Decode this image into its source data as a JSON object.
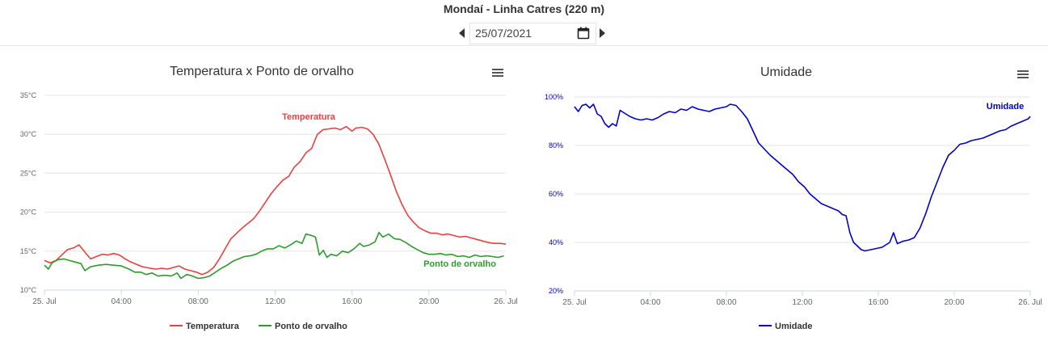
{
  "page": {
    "station_title": "Mondaí - Linha Catres (220 m)",
    "date_value": "25/07/2021",
    "icons": {
      "prev": "caret-left-icon",
      "next": "caret-right-icon",
      "calendar": "calendar-icon",
      "menu": "hamburger-menu-icon"
    }
  },
  "chart_data": [
    {
      "type": "line",
      "title": "Temperatura x Ponto de orvalho",
      "x_tick_labels": [
        "25. Jul",
        "04:00",
        "08:00",
        "12:00",
        "16:00",
        "20:00",
        "26. Jul"
      ],
      "x_ticks_hours": [
        0,
        4,
        8,
        12,
        16,
        20,
        24
      ],
      "xlim_hours": [
        0,
        24
      ],
      "y_tick_labels": [
        "10°C",
        "15°C",
        "20°C",
        "25°C",
        "30°C",
        "35°C"
      ],
      "y_ticks": [
        10,
        15,
        20,
        25,
        30,
        35
      ],
      "ylim": [
        10,
        35
      ],
      "grid": true,
      "legend_position": "bottom",
      "series": [
        {
          "name": "Temperatura",
          "color": "#e8403e",
          "points": [
            [
              0,
              13.8
            ],
            [
              0.3,
              13.5
            ],
            [
              0.6,
              13.8
            ],
            [
              0.9,
              14.5
            ],
            [
              1.2,
              15.2
            ],
            [
              1.5,
              15.4
            ],
            [
              1.8,
              15.8
            ],
            [
              2.0,
              15.2
            ],
            [
              2.2,
              14.6
            ],
            [
              2.4,
              14.0
            ],
            [
              2.7,
              14.3
            ],
            [
              3.0,
              14.6
            ],
            [
              3.3,
              14.5
            ],
            [
              3.6,
              14.7
            ],
            [
              3.9,
              14.5
            ],
            [
              4.2,
              14.0
            ],
            [
              4.5,
              13.6
            ],
            [
              4.8,
              13.3
            ],
            [
              5.1,
              13.0
            ],
            [
              5.5,
              12.8
            ],
            [
              5.8,
              12.7
            ],
            [
              6.1,
              12.8
            ],
            [
              6.4,
              12.7
            ],
            [
              6.7,
              12.9
            ],
            [
              7.0,
              13.1
            ],
            [
              7.3,
              12.7
            ],
            [
              7.6,
              12.5
            ],
            [
              7.9,
              12.3
            ],
            [
              8.2,
              12.0
            ],
            [
              8.5,
              12.3
            ],
            [
              8.8,
              12.9
            ],
            [
              9.1,
              14.0
            ],
            [
              9.4,
              15.3
            ],
            [
              9.7,
              16.6
            ],
            [
              10.0,
              17.3
            ],
            [
              10.3,
              18.0
            ],
            [
              10.6,
              18.6
            ],
            [
              10.9,
              19.2
            ],
            [
              11.2,
              20.2
            ],
            [
              11.5,
              21.3
            ],
            [
              11.8,
              22.4
            ],
            [
              12.1,
              23.3
            ],
            [
              12.4,
              24.1
            ],
            [
              12.7,
              24.6
            ],
            [
              13.0,
              25.8
            ],
            [
              13.3,
              26.5
            ],
            [
              13.6,
              27.6
            ],
            [
              13.9,
              28.2
            ],
            [
              14.2,
              30.0
            ],
            [
              14.5,
              30.6
            ],
            [
              14.8,
              30.7
            ],
            [
              15.1,
              30.8
            ],
            [
              15.4,
              30.6
            ],
            [
              15.7,
              31.0
            ],
            [
              16.0,
              30.4
            ],
            [
              16.2,
              30.8
            ],
            [
              16.5,
              30.9
            ],
            [
              16.8,
              30.7
            ],
            [
              17.1,
              30.0
            ],
            [
              17.4,
              28.7
            ],
            [
              17.7,
              26.8
            ],
            [
              18.0,
              24.8
            ],
            [
              18.3,
              22.7
            ],
            [
              18.6,
              21.0
            ],
            [
              18.9,
              19.6
            ],
            [
              19.2,
              18.7
            ],
            [
              19.5,
              18.0
            ],
            [
              19.8,
              17.6
            ],
            [
              20.1,
              17.3
            ],
            [
              20.4,
              17.3
            ],
            [
              20.7,
              17.1
            ],
            [
              21.0,
              17.2
            ],
            [
              21.3,
              17.0
            ],
            [
              21.6,
              16.8
            ],
            [
              21.9,
              16.9
            ],
            [
              22.2,
              16.7
            ],
            [
              22.5,
              16.5
            ],
            [
              22.8,
              16.3
            ],
            [
              23.1,
              16.1
            ],
            [
              23.4,
              16.0
            ],
            [
              23.7,
              16.0
            ],
            [
              24.0,
              15.9
            ]
          ]
        },
        {
          "name": "Ponto de orvalho",
          "color": "#2e9b2e",
          "points": [
            [
              0,
              13.2
            ],
            [
              0.2,
              12.7
            ],
            [
              0.4,
              13.5
            ],
            [
              0.7,
              13.9
            ],
            [
              1.0,
              14.0
            ],
            [
              1.3,
              13.8
            ],
            [
              1.6,
              13.6
            ],
            [
              1.9,
              13.4
            ],
            [
              2.1,
              12.5
            ],
            [
              2.4,
              13.0
            ],
            [
              2.8,
              13.2
            ],
            [
              3.2,
              13.3
            ],
            [
              3.6,
              13.2
            ],
            [
              4.0,
              13.1
            ],
            [
              4.4,
              12.7
            ],
            [
              4.7,
              12.3
            ],
            [
              5.0,
              12.3
            ],
            [
              5.3,
              12.0
            ],
            [
              5.6,
              12.2
            ],
            [
              5.9,
              11.8
            ],
            [
              6.3,
              11.9
            ],
            [
              6.6,
              11.8
            ],
            [
              6.9,
              12.2
            ],
            [
              7.1,
              11.5
            ],
            [
              7.4,
              12.0
            ],
            [
              7.7,
              11.8
            ],
            [
              8.0,
              11.5
            ],
            [
              8.3,
              11.6
            ],
            [
              8.6,
              11.8
            ],
            [
              8.9,
              12.3
            ],
            [
              9.2,
              12.8
            ],
            [
              9.5,
              13.2
            ],
            [
              9.8,
              13.7
            ],
            [
              10.1,
              14.0
            ],
            [
              10.4,
              14.3
            ],
            [
              10.7,
              14.4
            ],
            [
              11.0,
              14.6
            ],
            [
              11.3,
              15.0
            ],
            [
              11.6,
              15.3
            ],
            [
              11.9,
              15.3
            ],
            [
              12.2,
              15.7
            ],
            [
              12.5,
              15.4
            ],
            [
              12.8,
              15.8
            ],
            [
              13.1,
              16.3
            ],
            [
              13.4,
              16.0
            ],
            [
              13.6,
              17.2
            ],
            [
              13.9,
              17.0
            ],
            [
              14.1,
              16.8
            ],
            [
              14.3,
              14.5
            ],
            [
              14.5,
              15.1
            ],
            [
              14.7,
              14.2
            ],
            [
              14.9,
              14.6
            ],
            [
              15.2,
              14.4
            ],
            [
              15.5,
              15.0
            ],
            [
              15.8,
              14.8
            ],
            [
              16.1,
              15.3
            ],
            [
              16.4,
              16.0
            ],
            [
              16.6,
              15.6
            ],
            [
              16.9,
              15.8
            ],
            [
              17.2,
              16.2
            ],
            [
              17.4,
              17.4
            ],
            [
              17.6,
              16.8
            ],
            [
              17.9,
              17.2
            ],
            [
              18.2,
              16.6
            ],
            [
              18.5,
              16.5
            ],
            [
              18.8,
              16.1
            ],
            [
              19.1,
              15.6
            ],
            [
              19.4,
              15.2
            ],
            [
              19.7,
              14.8
            ],
            [
              20.0,
              14.6
            ],
            [
              20.3,
              14.6
            ],
            [
              20.6,
              14.7
            ],
            [
              20.9,
              14.5
            ],
            [
              21.2,
              14.6
            ],
            [
              21.5,
              14.3
            ],
            [
              21.8,
              14.4
            ],
            [
              22.1,
              14.2
            ],
            [
              22.4,
              14.5
            ],
            [
              22.7,
              14.3
            ],
            [
              23.0,
              14.4
            ],
            [
              23.3,
              14.3
            ],
            [
              23.6,
              14.2
            ],
            [
              23.9,
              14.4
            ]
          ]
        }
      ]
    },
    {
      "type": "line",
      "title": "Umidade",
      "x_tick_labels": [
        "25. Jul",
        "04:00",
        "08:00",
        "12:00",
        "16:00",
        "20:00",
        "26. Jul"
      ],
      "x_ticks_hours": [
        0,
        4,
        8,
        12,
        16,
        20,
        24
      ],
      "xlim_hours": [
        0,
        24
      ],
      "y_tick_labels": [
        "20%",
        "40%",
        "60%",
        "80%",
        "100%"
      ],
      "y_ticks": [
        20,
        40,
        60,
        80,
        100
      ],
      "ylim": [
        20,
        100
      ],
      "grid": true,
      "legend_position": "bottom",
      "series": [
        {
          "name": "Umidade",
          "color": "#0000cc",
          "points": [
            [
              0,
              96
            ],
            [
              0.2,
              94
            ],
            [
              0.4,
              96.5
            ],
            [
              0.6,
              97
            ],
            [
              0.8,
              95.5
            ],
            [
              1.0,
              97
            ],
            [
              1.2,
              93
            ],
            [
              1.4,
              92
            ],
            [
              1.6,
              89
            ],
            [
              1.8,
              87.5
            ],
            [
              2.0,
              89
            ],
            [
              2.2,
              88
            ],
            [
              2.4,
              94.5
            ],
            [
              2.6,
              93.5
            ],
            [
              2.9,
              92
            ],
            [
              3.2,
              91
            ],
            [
              3.5,
              90.5
            ],
            [
              3.8,
              91
            ],
            [
              4.1,
              90.5
            ],
            [
              4.4,
              91.5
            ],
            [
              4.7,
              93
            ],
            [
              5.0,
              94
            ],
            [
              5.3,
              93.5
            ],
            [
              5.6,
              95
            ],
            [
              5.9,
              94.5
            ],
            [
              6.2,
              96
            ],
            [
              6.5,
              95
            ],
            [
              6.8,
              94.5
            ],
            [
              7.1,
              94
            ],
            [
              7.4,
              95
            ],
            [
              7.7,
              95.5
            ],
            [
              8.0,
              96
            ],
            [
              8.2,
              97
            ],
            [
              8.5,
              96.5
            ],
            [
              8.8,
              94
            ],
            [
              9.1,
              91
            ],
            [
              9.4,
              86
            ],
            [
              9.7,
              81
            ],
            [
              10.0,
              78.5
            ],
            [
              10.3,
              76
            ],
            [
              10.6,
              74
            ],
            [
              10.9,
              72
            ],
            [
              11.2,
              70
            ],
            [
              11.5,
              68
            ],
            [
              11.8,
              65
            ],
            [
              12.1,
              63
            ],
            [
              12.4,
              60
            ],
            [
              12.7,
              58
            ],
            [
              13.0,
              56
            ],
            [
              13.3,
              55
            ],
            [
              13.6,
              54
            ],
            [
              13.9,
              53
            ],
            [
              14.1,
              51.5
            ],
            [
              14.3,
              51
            ],
            [
              14.5,
              44
            ],
            [
              14.7,
              40
            ],
            [
              14.9,
              38.5
            ],
            [
              15.1,
              37
            ],
            [
              15.3,
              36.5
            ],
            [
              15.6,
              37
            ],
            [
              15.9,
              37.5
            ],
            [
              16.2,
              38
            ],
            [
              16.4,
              39
            ],
            [
              16.6,
              40
            ],
            [
              16.8,
              44
            ],
            [
              17.0,
              39.5
            ],
            [
              17.3,
              40.5
            ],
            [
              17.6,
              41
            ],
            [
              17.9,
              42
            ],
            [
              18.2,
              46
            ],
            [
              18.5,
              52
            ],
            [
              18.8,
              59
            ],
            [
              19.1,
              65
            ],
            [
              19.4,
              71
            ],
            [
              19.7,
              76
            ],
            [
              20.0,
              78
            ],
            [
              20.3,
              80.5
            ],
            [
              20.6,
              81
            ],
            [
              20.9,
              82
            ],
            [
              21.2,
              82.5
            ],
            [
              21.5,
              83
            ],
            [
              21.8,
              84
            ],
            [
              22.1,
              85
            ],
            [
              22.4,
              86
            ],
            [
              22.7,
              86.5
            ],
            [
              23.0,
              88
            ],
            [
              23.3,
              89
            ],
            [
              23.6,
              90
            ],
            [
              23.9,
              91
            ],
            [
              24.0,
              92
            ]
          ]
        }
      ]
    }
  ]
}
